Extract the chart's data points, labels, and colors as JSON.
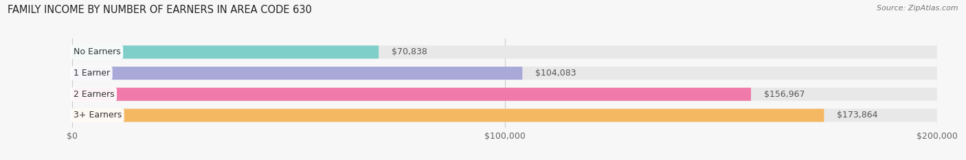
{
  "title": "FAMILY INCOME BY NUMBER OF EARNERS IN AREA CODE 630",
  "source": "Source: ZipAtlas.com",
  "categories": [
    "No Earners",
    "1 Earner",
    "2 Earners",
    "3+ Earners"
  ],
  "values": [
    70838,
    104083,
    156967,
    173864
  ],
  "bar_colors": [
    "#7ececa",
    "#a9a9d9",
    "#f07aaa",
    "#f5b862"
  ],
  "bar_bg_color": "#e8e8e8",
  "value_labels": [
    "$70,838",
    "$104,083",
    "$156,967",
    "$173,864"
  ],
  "xlim": [
    0,
    200000
  ],
  "xticks": [
    0,
    100000,
    200000
  ],
  "xtick_labels": [
    "$0",
    "$100,000",
    "$200,000"
  ],
  "bar_height": 0.62,
  "background_color": "#f7f7f7",
  "title_fontsize": 10.5,
  "source_fontsize": 8,
  "label_fontsize": 9,
  "value_fontsize": 9
}
